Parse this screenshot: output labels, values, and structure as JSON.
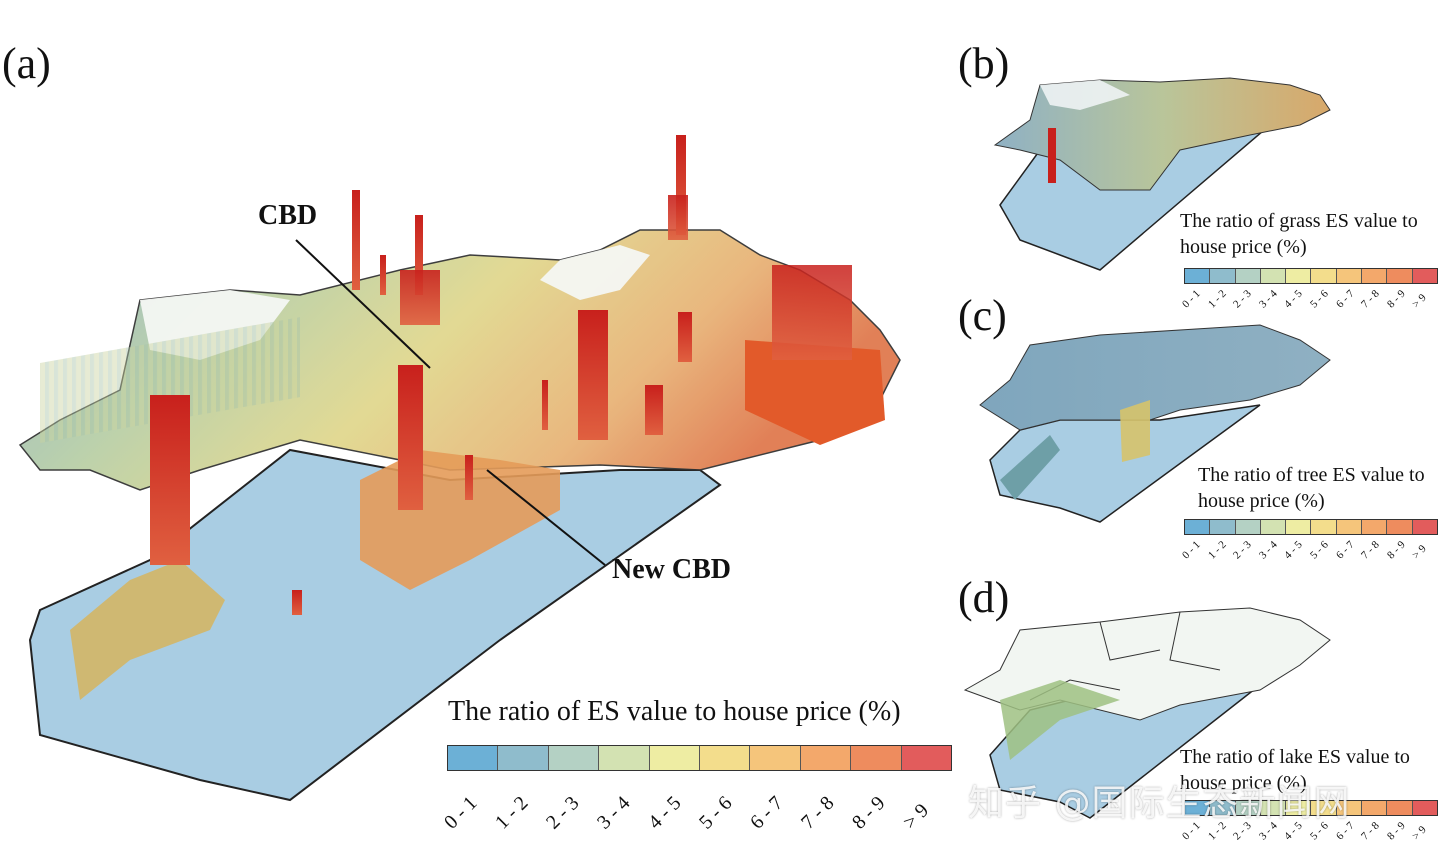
{
  "panels": {
    "a": {
      "label": "(a)",
      "annotations": {
        "cbd": "CBD",
        "new_cbd": "New CBD"
      },
      "legend_title": "The ratio of ES value to house price (%)"
    },
    "b": {
      "label": "(b)",
      "legend_title": "The ratio of grass ES value to\nhouse price (%)"
    },
    "c": {
      "label": "(c)",
      "legend_title": "The ratio of tree ES value to\nhouse price (%)"
    },
    "d": {
      "label": "(d)",
      "legend_title": "The ratio of lake ES value to\nhouse price (%)"
    }
  },
  "legend_classes": [
    "0 - 1",
    "1 - 2",
    "2 - 3",
    "3 - 4",
    "4 - 5",
    "5 - 6",
    "6 - 7",
    "7 - 8",
    "8 - 9",
    "> 9"
  ],
  "legend_colors": [
    "#6cb0d6",
    "#8fbccc",
    "#b4d1c4",
    "#d3e2b2",
    "#eeeda3",
    "#f3dd8c",
    "#f5c57b",
    "#f3a86b",
    "#ee8c5e",
    "#e25c5c"
  ],
  "water_color": "#a9cde3",
  "watermark": "知乎 @国际生态新闻网"
}
